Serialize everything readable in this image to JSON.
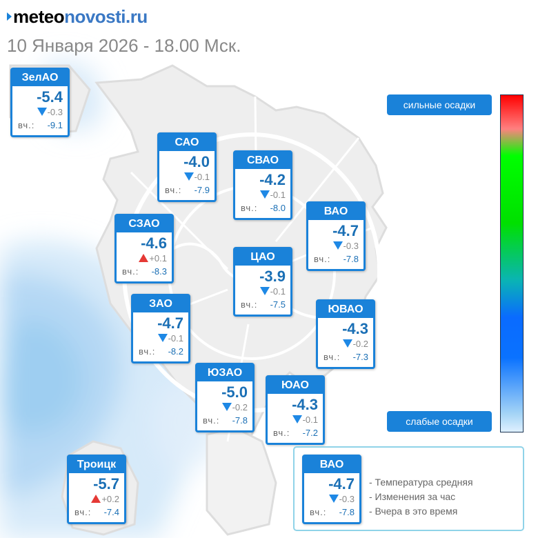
{
  "brand": {
    "part1": "meteo",
    "part2": "novosti.ru"
  },
  "subtitle": "10 Января 2026 - 18.00 Мск.",
  "yest_label": "вч.:",
  "districts": [
    {
      "name": "ЗелАО",
      "temp": "-5.4",
      "trend": "down",
      "change": "-0.3",
      "yesterday": "-9.1"
    },
    {
      "name": "САО",
      "temp": "-4.0",
      "trend": "down",
      "change": "-0.1",
      "yesterday": "-7.9"
    },
    {
      "name": "СВАО",
      "temp": "-4.2",
      "trend": "down",
      "change": "-0.1",
      "yesterday": "-8.0"
    },
    {
      "name": "ВАО",
      "temp": "-4.7",
      "trend": "down",
      "change": "-0.3",
      "yesterday": "-7.8"
    },
    {
      "name": "СЗАО",
      "temp": "-4.6",
      "trend": "up",
      "change": "+0.1",
      "yesterday": "-8.3"
    },
    {
      "name": "ЦАО",
      "temp": "-3.9",
      "trend": "down",
      "change": "-0.1",
      "yesterday": "-7.5"
    },
    {
      "name": "ЗАО",
      "temp": "-4.7",
      "trend": "down",
      "change": "-0.1",
      "yesterday": "-8.2"
    },
    {
      "name": "ЮВАО",
      "temp": "-4.3",
      "trend": "down",
      "change": "-0.2",
      "yesterday": "-7.3"
    },
    {
      "name": "ЮЗАО",
      "temp": "-5.0",
      "trend": "down",
      "change": "-0.2",
      "yesterday": "-7.8"
    },
    {
      "name": "ЮАО",
      "temp": "-4.3",
      "trend": "down",
      "change": "-0.1",
      "yesterday": "-7.2"
    },
    {
      "name": "Троицк",
      "temp": "-5.7",
      "trend": "up",
      "change": "+0.2",
      "yesterday": "-7.4"
    }
  ],
  "legend": {
    "sample": {
      "name": "ВАО",
      "temp": "-4.7",
      "trend": "down",
      "change": "-0.3",
      "yesterday": "-7.8"
    },
    "lines": [
      "- Температура средняя",
      "- Изменения за час",
      "- Вчера в это время"
    ]
  },
  "precip_scale": {
    "top_label": "сильные осадки",
    "bottom_label": "слабые осадки",
    "colors": [
      "#ff0000",
      "#00ff00",
      "#0a6bff",
      "#dff0ff"
    ]
  },
  "colors": {
    "accent": "#1a82d9",
    "temp_text": "#1a6fb5",
    "trend_down": "#1e88e5",
    "trend_up": "#e53935",
    "brand_blue": "#3a78c4"
  }
}
